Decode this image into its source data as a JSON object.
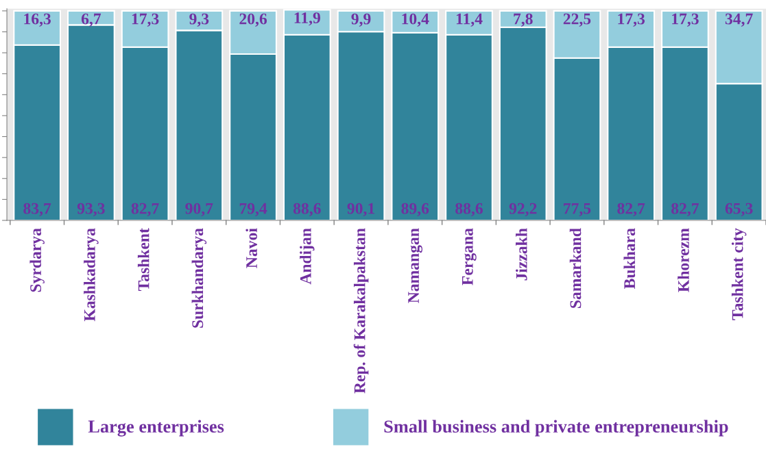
{
  "chart_data": {
    "type": "bar",
    "stacked": true,
    "categories": [
      "Syrdarya",
      "Kashkadarya",
      "Tashkent",
      "Surkhandarya",
      "Navoi",
      "Andijan",
      "Rep. of Karakalpakstan",
      "Namangan",
      "Fergana",
      "Jizzakh",
      "Samarkand",
      "Bukhara",
      "Khorezm",
      "Tashkent city"
    ],
    "series": [
      {
        "name": "Large enterprises",
        "color": "#31849b",
        "values": [
          83.7,
          93.3,
          82.7,
          90.7,
          79.4,
          88.6,
          90.1,
          89.6,
          88.6,
          92.2,
          77.5,
          82.7,
          82.7,
          65.3
        ],
        "value_labels": [
          "83,7",
          "93,3",
          "82,7",
          "90,7",
          "79,4",
          "88,6",
          "90,1",
          "89,6",
          "88,6",
          "92,2",
          "77,5",
          "82,7",
          "82,7",
          "65,3"
        ]
      },
      {
        "name": "Small business and private entrepreneurship",
        "color": "#93cddd",
        "values": [
          16.3,
          6.7,
          17.3,
          9.3,
          20.6,
          11.9,
          9.9,
          10.4,
          11.4,
          7.8,
          22.5,
          17.3,
          17.3,
          34.7
        ],
        "value_labels": [
          "16,3",
          "6,7",
          "17,3",
          "9,3",
          "20,6",
          "11,9",
          "9,9",
          "10,4",
          "11,4",
          "7,8",
          "22,5",
          "17,3",
          "17,3",
          "34,7"
        ]
      }
    ],
    "ylim": [
      0,
      101
    ],
    "yticks": [
      {
        "value": 0,
        "label": null
      },
      {
        "value": 10,
        "label": null
      },
      {
        "value": 20,
        "label": null
      },
      {
        "value": 30,
        "label": null
      },
      {
        "value": 40,
        "label": null
      },
      {
        "value": 50,
        "label": null
      },
      {
        "value": 60,
        "label": null
      },
      {
        "value": 70,
        "label": null
      },
      {
        "value": 80,
        "label": null
      },
      {
        "value": 90,
        "label": null
      },
      {
        "value": 100,
        "label": null
      }
    ],
    "tick_labels": "x",
    "legend": "bottom",
    "grid": false
  }
}
